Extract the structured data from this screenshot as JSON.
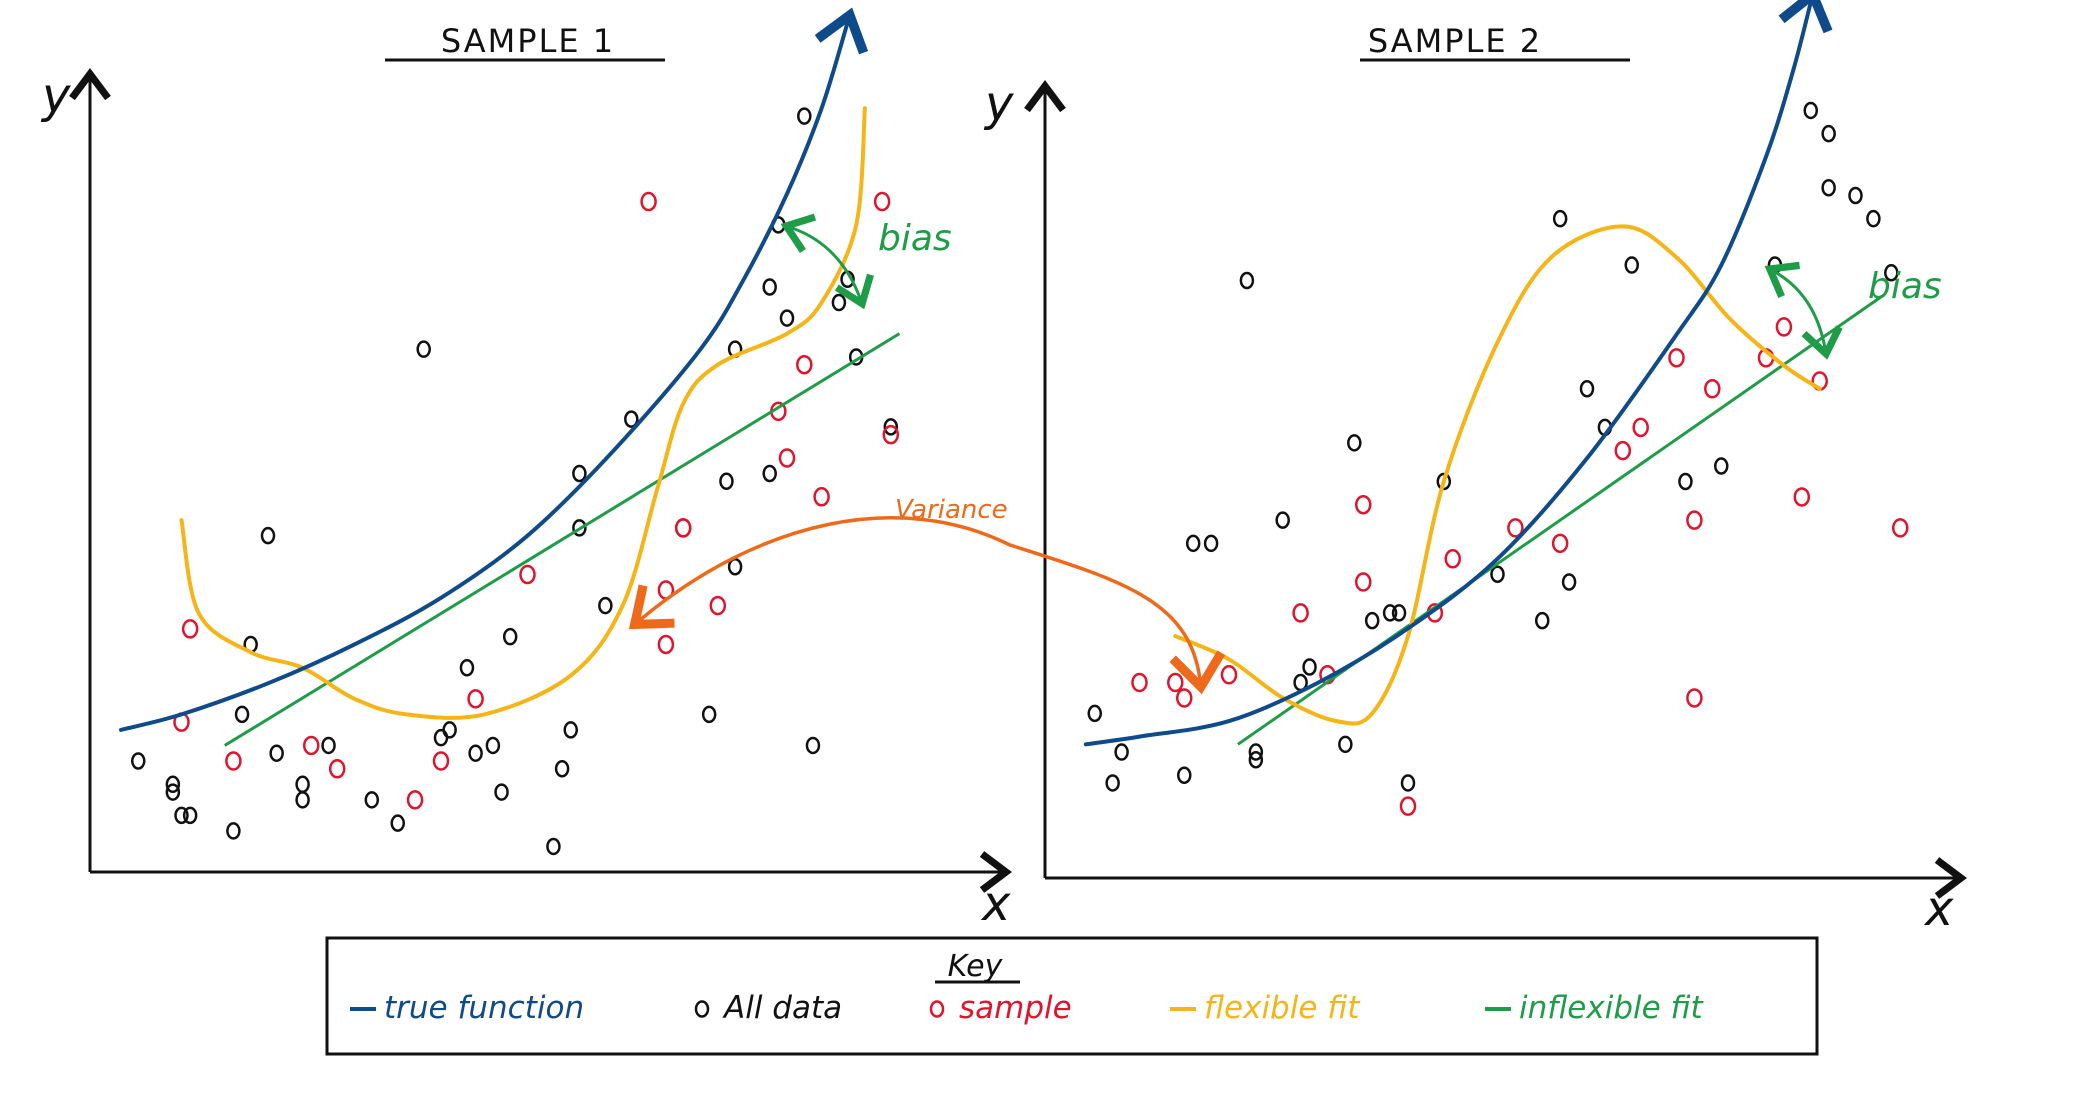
{
  "panels": [
    {
      "title": "SAMPLE 1",
      "y_label": "y",
      "x_label": "x",
      "bias_label": "bias",
      "all_data": [
        [
          0.05,
          0.13
        ],
        [
          0.09,
          0.1
        ],
        [
          0.11,
          0.06
        ],
        [
          0.17,
          0.19
        ],
        [
          0.21,
          0.14
        ],
        [
          0.24,
          0.1
        ],
        [
          0.24,
          0.08
        ],
        [
          0.27,
          0.15
        ],
        [
          0.32,
          0.08
        ],
        [
          0.4,
          0.16
        ],
        [
          0.41,
          0.17
        ],
        [
          0.44,
          0.14
        ],
        [
          0.46,
          0.15
        ],
        [
          0.47,
          0.09
        ],
        [
          0.48,
          0.29
        ],
        [
          0.55,
          0.17
        ],
        [
          0.54,
          0.12
        ],
        [
          0.56,
          0.43
        ],
        [
          0.59,
          0.33
        ],
        [
          0.71,
          0.19
        ],
        [
          0.73,
          0.49
        ],
        [
          0.74,
          0.38
        ],
        [
          0.78,
          0.5
        ],
        [
          0.78,
          0.74
        ],
        [
          0.8,
          0.7
        ],
        [
          0.82,
          0.96
        ],
        [
          0.79,
          0.82
        ],
        [
          0.86,
          0.72
        ],
        [
          0.87,
          0.75
        ],
        [
          0.88,
          0.65
        ],
        [
          0.92,
          0.56
        ],
        [
          0.62,
          0.57
        ],
        [
          0.74,
          0.66
        ],
        [
          0.43,
          0.25
        ],
        [
          0.53,
          0.02
        ],
        [
          0.2,
          0.42
        ],
        [
          0.1,
          0.06
        ],
        [
          0.18,
          0.28
        ],
        [
          0.83,
          0.15
        ],
        [
          0.56,
          0.5
        ],
        [
          0.35,
          0.05
        ],
        [
          0.16,
          0.04
        ],
        [
          0.38,
          0.66
        ],
        [
          0.09,
          0.09
        ]
      ],
      "sample": [
        [
          0.1,
          0.18
        ],
        [
          0.16,
          0.13
        ],
        [
          0.11,
          0.3
        ],
        [
          0.25,
          0.15
        ],
        [
          0.28,
          0.12
        ],
        [
          0.37,
          0.08
        ],
        [
          0.44,
          0.21
        ],
        [
          0.66,
          0.28
        ],
        [
          0.68,
          0.43
        ],
        [
          0.68,
          0.43
        ],
        [
          0.72,
          0.33
        ],
        [
          0.8,
          0.52
        ],
        [
          0.84,
          0.47
        ],
        [
          0.91,
          0.85
        ],
        [
          0.92,
          0.55
        ],
        [
          0.64,
          0.85
        ],
        [
          0.82,
          0.64
        ],
        [
          0.79,
          0.58
        ],
        [
          0.5,
          0.37
        ],
        [
          0.66,
          0.35
        ],
        [
          0.4,
          0.13
        ]
      ],
      "true_function": [
        [
          0.03,
          0.17
        ],
        [
          0.1,
          0.19
        ],
        [
          0.2,
          0.23
        ],
        [
          0.3,
          0.28
        ],
        [
          0.4,
          0.34
        ],
        [
          0.5,
          0.42
        ],
        [
          0.6,
          0.53
        ],
        [
          0.7,
          0.66
        ],
        [
          0.75,
          0.75
        ],
        [
          0.8,
          0.86
        ],
        [
          0.84,
          0.97
        ],
        [
          0.87,
          1.08
        ]
      ],
      "flexible_fit": [
        [
          0.1,
          0.44
        ],
        [
          0.12,
          0.32
        ],
        [
          0.18,
          0.27
        ],
        [
          0.24,
          0.25
        ],
        [
          0.3,
          0.21
        ],
        [
          0.36,
          0.19
        ],
        [
          0.45,
          0.19
        ],
        [
          0.55,
          0.24
        ],
        [
          0.61,
          0.33
        ],
        [
          0.65,
          0.48
        ],
        [
          0.68,
          0.59
        ],
        [
          0.72,
          0.64
        ],
        [
          0.8,
          0.68
        ],
        [
          0.84,
          0.72
        ],
        [
          0.88,
          0.82
        ],
        [
          0.89,
          0.97
        ]
      ],
      "inflexible_fit": [
        [
          0.15,
          0.15
        ],
        [
          0.93,
          0.68
        ]
      ]
    },
    {
      "title": "SAMPLE 2",
      "y_label": "y",
      "x_label": "x",
      "bias_label": "bias",
      "all_data": [
        [
          0.05,
          0.2
        ],
        [
          0.08,
          0.15
        ],
        [
          0.07,
          0.11
        ],
        [
          0.15,
          0.12
        ],
        [
          0.23,
          0.15
        ],
        [
          0.23,
          0.14
        ],
        [
          0.29,
          0.26
        ],
        [
          0.33,
          0.16
        ],
        [
          0.28,
          0.24
        ],
        [
          0.36,
          0.32
        ],
        [
          0.38,
          0.33
        ],
        [
          0.4,
          0.11
        ],
        [
          0.39,
          0.33
        ],
        [
          0.44,
          0.5
        ],
        [
          0.34,
          0.55
        ],
        [
          0.26,
          0.45
        ],
        [
          0.16,
          0.42
        ],
        [
          0.18,
          0.42
        ],
        [
          0.22,
          0.76
        ],
        [
          0.5,
          0.38
        ],
        [
          0.55,
          0.32
        ],
        [
          0.58,
          0.37
        ],
        [
          0.6,
          0.62
        ],
        [
          0.62,
          0.57
        ],
        [
          0.57,
          0.84
        ],
        [
          0.65,
          0.78
        ],
        [
          0.71,
          0.5
        ],
        [
          0.75,
          0.52
        ],
        [
          0.81,
          0.78
        ],
        [
          0.85,
          0.98
        ],
        [
          0.87,
          0.88
        ],
        [
          0.87,
          0.95
        ],
        [
          0.92,
          0.84
        ],
        [
          0.9,
          0.87
        ],
        [
          0.94,
          0.77
        ]
      ],
      "sample": [
        [
          0.1,
          0.24
        ],
        [
          0.14,
          0.24
        ],
        [
          0.15,
          0.22
        ],
        [
          0.2,
          0.25
        ],
        [
          0.28,
          0.33
        ],
        [
          0.31,
          0.25
        ],
        [
          0.35,
          0.37
        ],
        [
          0.45,
          0.4
        ],
        [
          0.43,
          0.33
        ],
        [
          0.4,
          0.08
        ],
        [
          0.35,
          0.47
        ],
        [
          0.52,
          0.44
        ],
        [
          0.57,
          0.42
        ],
        [
          0.64,
          0.54
        ],
        [
          0.66,
          0.57
        ],
        [
          0.7,
          0.66
        ],
        [
          0.74,
          0.62
        ],
        [
          0.72,
          0.45
        ],
        [
          0.84,
          0.48
        ],
        [
          0.8,
          0.66
        ],
        [
          0.82,
          0.7
        ],
        [
          0.86,
          0.63
        ],
        [
          0.72,
          0.22
        ],
        [
          0.95,
          0.44
        ]
      ],
      "true_function": [
        [
          0.04,
          0.16
        ],
        [
          0.1,
          0.17
        ],
        [
          0.2,
          0.19
        ],
        [
          0.3,
          0.24
        ],
        [
          0.4,
          0.31
        ],
        [
          0.5,
          0.4
        ],
        [
          0.6,
          0.53
        ],
        [
          0.7,
          0.69
        ],
        [
          0.75,
          0.78
        ],
        [
          0.8,
          0.92
        ],
        [
          0.83,
          1.03
        ],
        [
          0.85,
          1.12
        ]
      ],
      "flexible_fit": [
        [
          0.14,
          0.3
        ],
        [
          0.2,
          0.27
        ],
        [
          0.26,
          0.22
        ],
        [
          0.32,
          0.19
        ],
        [
          0.36,
          0.2
        ],
        [
          0.4,
          0.3
        ],
        [
          0.44,
          0.5
        ],
        [
          0.5,
          0.68
        ],
        [
          0.56,
          0.79
        ],
        [
          0.64,
          0.83
        ],
        [
          0.7,
          0.79
        ],
        [
          0.76,
          0.71
        ],
        [
          0.82,
          0.65
        ],
        [
          0.86,
          0.62
        ]
      ],
      "inflexible_fit": [
        [
          0.21,
          0.16
        ],
        [
          0.93,
          0.74
        ]
      ]
    }
  ],
  "annotations": {
    "variance_label": "Variance"
  },
  "legend": {
    "title": "Key",
    "items": [
      {
        "label": "true function",
        "color": "#0f4a8a",
        "marker": "line"
      },
      {
        "label": "All data",
        "color": "#111111",
        "marker": "circle"
      },
      {
        "label": "sample",
        "color": "#e0142d",
        "marker": "circle"
      },
      {
        "label": "flexible fit",
        "color": "#f5b518",
        "marker": "line"
      },
      {
        "label": "inflexible fit",
        "color": "#1f9c48",
        "marker": "line"
      }
    ]
  },
  "colors": {
    "true_function": "#0f4a8a",
    "all_data": "#111111",
    "sample": "#e0142d",
    "flexible_fit": "#f5b518",
    "inflexible_fit": "#1f9c48",
    "variance": "#ee6a1a",
    "bias": "#1f9c48"
  }
}
